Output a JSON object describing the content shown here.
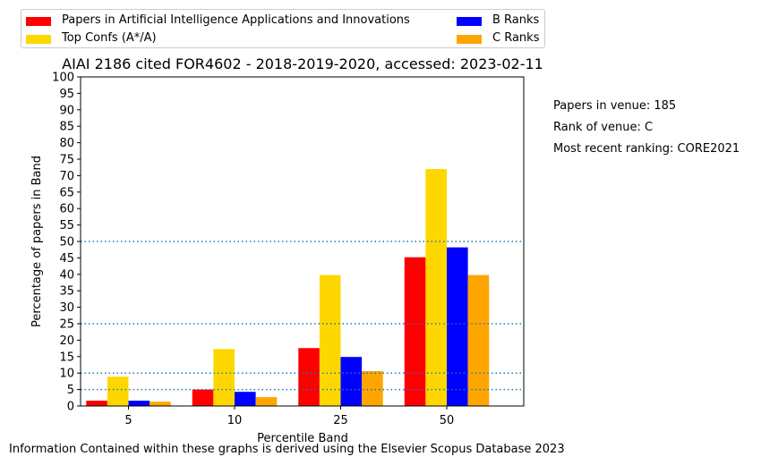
{
  "chart_data": {
    "type": "bar",
    "title": "AIAI 2186 cited FOR4602 - 2018-2019-2020, accessed: 2023-02-11",
    "xlabel": "Percentile Band",
    "ylabel": "Percentage of papers in Band",
    "categories": [
      "5",
      "10",
      "25",
      "50"
    ],
    "ylim": [
      0,
      100
    ],
    "yticks": [
      0,
      5,
      10,
      15,
      20,
      25,
      30,
      35,
      40,
      45,
      50,
      55,
      60,
      65,
      70,
      75,
      80,
      85,
      90,
      95,
      100
    ],
    "reference_lines": [
      5,
      10,
      25,
      50
    ],
    "reference_line_color": "#1f77b4",
    "legend_position": "top",
    "series": [
      {
        "name": "Papers in Artificial Intelligence Applications and Innovations",
        "color": "#ff0000",
        "values": [
          1.6,
          5.0,
          17.6,
          45.2
        ]
      },
      {
        "name": "Top Confs (A*/A)",
        "color": "#ffd700",
        "values": [
          8.9,
          17.3,
          39.8,
          72.0
        ]
      },
      {
        "name": "B Ranks",
        "color": "#0000ff",
        "values": [
          1.6,
          4.3,
          14.9,
          48.2
        ]
      },
      {
        "name": "C Ranks",
        "color": "#ffa500",
        "values": [
          1.3,
          2.7,
          10.6,
          39.8
        ]
      }
    ]
  },
  "side_notes": [
    "Papers in venue: 185",
    "Rank of venue: C",
    "Most recent ranking: CORE2021"
  ],
  "footer": "Information Contained within these graphs is derived using the Elsevier Scopus Database 2023"
}
